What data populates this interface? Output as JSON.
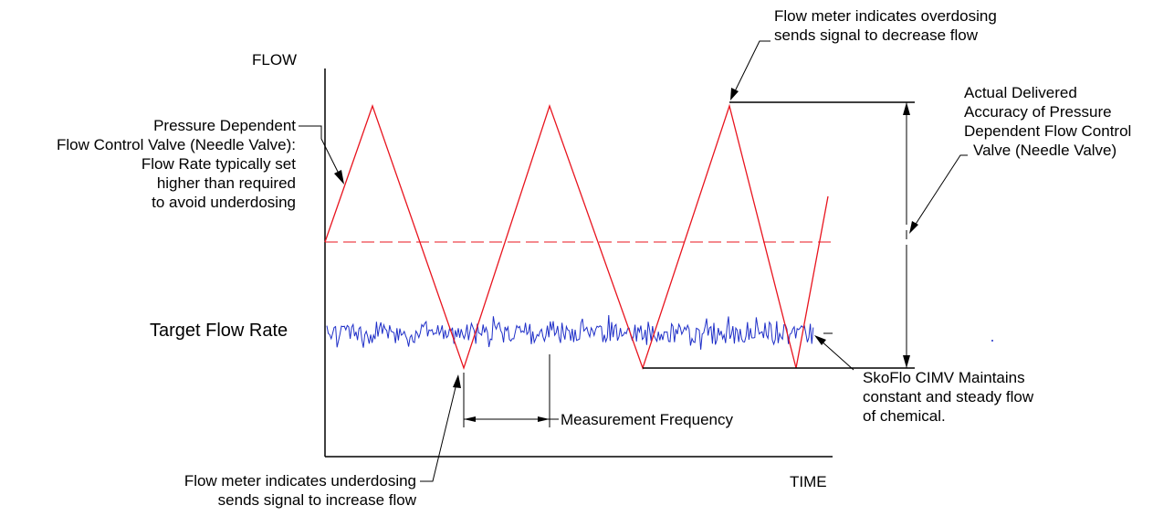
{
  "axes": {
    "y_label": "FLOW",
    "x_label": "TIME"
  },
  "labels": {
    "target": "Target Flow Rate",
    "measurement": "Measurement Frequency",
    "needle_valve": [
      "Pressure Dependent",
      "Flow Control Valve (Needle Valve):",
      "Flow Rate typically set",
      "higher than required",
      "to avoid underdosing"
    ],
    "overdosing": [
      "Flow meter indicates overdosing",
      "sends signal to decrease flow"
    ],
    "accuracy": [
      "Actual Delivered",
      "Accuracy of Pressure",
      "Dependent Flow Control",
      "Valve (Needle Valve)"
    ],
    "skoflo": [
      "SkoFlo CIMV Maintains",
      "constant and steady flow",
      "of chemical."
    ],
    "underdosing": [
      "Flow meter indicates underdosing",
      "sends signal to increase flow"
    ]
  },
  "colors": {
    "sawtooth": "#e8141e",
    "steady": "#1f2fc8",
    "lines": "#000000"
  }
}
